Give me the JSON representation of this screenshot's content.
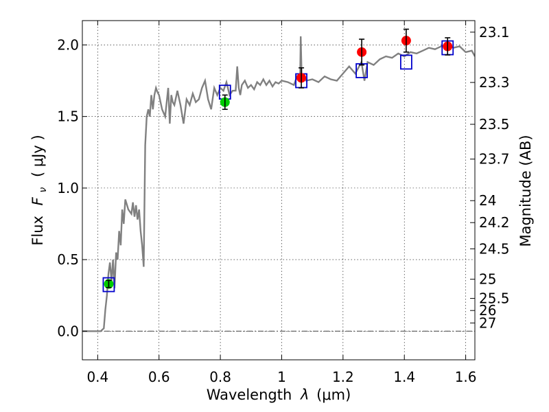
{
  "chart_data": {
    "type": "scatter",
    "xlabel_prefix": "Wavelength",
    "xlabel_symbol": "λ",
    "xlabel_unit": "(μm)",
    "ylabel_prefix": "Flux",
    "ylabel_symbol": "F",
    "ylabel_subscript": "ν",
    "ylabel_unit": "( μJy )",
    "y2label": "Magnitude (AB)",
    "xlim": [
      0.35,
      1.63
    ],
    "ylim": [
      -0.2,
      2.17
    ],
    "xticks": [
      0.4,
      0.6,
      0.8,
      1.0,
      1.2,
      1.4,
      1.6
    ],
    "xtick_labels": [
      "0.4",
      "0.6",
      "0.8",
      "1",
      "1.2",
      "1.4",
      "1.6"
    ],
    "yticks": [
      0.0,
      0.5,
      1.0,
      1.5,
      2.0
    ],
    "ytick_labels": [
      "0.0",
      "0.5",
      "1.0",
      "1.5",
      "2.0"
    ],
    "mag_ticks": [
      23.1,
      23.3,
      23.5,
      23.7,
      24,
      24.2,
      24.5,
      25,
      25.5,
      26,
      27
    ],
    "mag_tick_labels": [
      "23.1",
      "23.3",
      "23.5",
      "23.7",
      "24",
      "24.2",
      "24.5",
      "25",
      "25.5",
      "26",
      "27"
    ],
    "grid": true,
    "colors": {
      "model": "#808080",
      "red": "#ff0000",
      "green": "#00cc00",
      "blue": "#0000cc",
      "zero": "#404040"
    },
    "model_spectrum": {
      "x": [
        0.35,
        0.4,
        0.405,
        0.41,
        0.42,
        0.425,
        0.43,
        0.435,
        0.44,
        0.445,
        0.45,
        0.455,
        0.46,
        0.465,
        0.47,
        0.475,
        0.48,
        0.485,
        0.49,
        0.5,
        0.51,
        0.515,
        0.52,
        0.525,
        0.53,
        0.535,
        0.54,
        0.545,
        0.55,
        0.552,
        0.555,
        0.56,
        0.565,
        0.57,
        0.575,
        0.58,
        0.585,
        0.59,
        0.595,
        0.6,
        0.61,
        0.62,
        0.63,
        0.635,
        0.64,
        0.645,
        0.65,
        0.66,
        0.67,
        0.68,
        0.69,
        0.7,
        0.71,
        0.72,
        0.73,
        0.74,
        0.75,
        0.76,
        0.77,
        0.78,
        0.79,
        0.8,
        0.81,
        0.82,
        0.83,
        0.84,
        0.85,
        0.855,
        0.86,
        0.865,
        0.87,
        0.88,
        0.89,
        0.9,
        0.91,
        0.92,
        0.93,
        0.94,
        0.95,
        0.96,
        0.97,
        0.98,
        0.99,
        1.0,
        1.02,
        1.04,
        1.05,
        1.06,
        1.062,
        1.065,
        1.07,
        1.08,
        1.1,
        1.12,
        1.14,
        1.16,
        1.18,
        1.2,
        1.22,
        1.24,
        1.26,
        1.27,
        1.28,
        1.3,
        1.32,
        1.34,
        1.36,
        1.38,
        1.4,
        1.42,
        1.44,
        1.46,
        1.48,
        1.5,
        1.52,
        1.54,
        1.56,
        1.58,
        1.6,
        1.62,
        1.63
      ],
      "y": [
        0.0,
        0.0,
        0.0,
        0.0,
        0.02,
        0.15,
        0.25,
        0.4,
        0.48,
        0.35,
        0.5,
        0.3,
        0.55,
        0.5,
        0.7,
        0.6,
        0.85,
        0.75,
        0.92,
        0.85,
        0.82,
        0.9,
        0.8,
        0.88,
        0.78,
        0.85,
        0.7,
        0.6,
        0.45,
        0.8,
        1.3,
        1.5,
        1.55,
        1.5,
        1.65,
        1.55,
        1.65,
        1.7,
        1.67,
        1.65,
        1.55,
        1.5,
        1.7,
        1.45,
        1.65,
        1.6,
        1.58,
        1.68,
        1.58,
        1.45,
        1.62,
        1.58,
        1.66,
        1.6,
        1.62,
        1.7,
        1.75,
        1.62,
        1.55,
        1.7,
        1.65,
        1.7,
        1.68,
        1.74,
        1.65,
        1.68,
        1.68,
        1.85,
        1.7,
        1.65,
        1.72,
        1.75,
        1.7,
        1.72,
        1.69,
        1.74,
        1.72,
        1.76,
        1.72,
        1.75,
        1.71,
        1.74,
        1.73,
        1.75,
        1.74,
        1.72,
        1.78,
        1.76,
        2.06,
        1.8,
        1.78,
        1.75,
        1.76,
        1.74,
        1.78,
        1.76,
        1.75,
        1.8,
        1.85,
        1.8,
        1.88,
        1.75,
        1.88,
        1.86,
        1.9,
        1.92,
        1.91,
        1.94,
        1.92,
        1.95,
        1.94,
        1.96,
        1.98,
        1.97,
        1.99,
        2.0,
        1.98,
        1.99,
        1.95,
        1.96,
        1.92
      ]
    },
    "photometry_red": [
      {
        "x": 1.064,
        "y": 1.77,
        "err": 0.07
      },
      {
        "x": 1.261,
        "y": 1.95,
        "err": 0.09
      },
      {
        "x": 1.406,
        "y": 2.03,
        "err": 0.08
      },
      {
        "x": 1.541,
        "y": 1.99,
        "err": 0.06
      }
    ],
    "photometry_green": [
      {
        "x": 0.436,
        "y": 0.33,
        "err": 0.025
      },
      {
        "x": 0.815,
        "y": 1.6,
        "err": 0.05
      }
    ],
    "model_bands_blue": [
      {
        "x": 0.436,
        "y": 0.325
      },
      {
        "x": 0.815,
        "y": 1.67
      },
      {
        "x": 1.064,
        "y": 1.75
      },
      {
        "x": 1.261,
        "y": 1.82
      },
      {
        "x": 1.406,
        "y": 1.88
      },
      {
        "x": 1.541,
        "y": 1.98
      }
    ]
  }
}
